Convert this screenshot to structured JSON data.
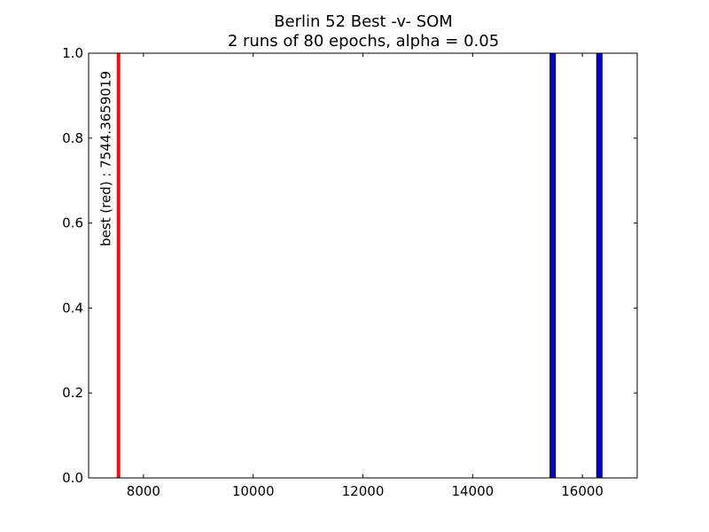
{
  "chart_data": {
    "type": "bar",
    "title": "Berlin 52 Best -v- SOM",
    "subtitle": "2 runs of 80 epochs, alpha = 0.05",
    "xlabel": "",
    "ylabel": "",
    "xlim": [
      7000,
      17000
    ],
    "ylim": [
      0,
      1
    ],
    "x_ticks": [
      8000,
      10000,
      12000,
      14000,
      16000
    ],
    "x_tick_labels": [
      "8000",
      "10000",
      "12000",
      "14000",
      "16000"
    ],
    "y_ticks": [
      0,
      0.2,
      0.4,
      0.6,
      0.8,
      1.0
    ],
    "y_tick_labels": [
      "0.0",
      "0.2",
      "0.4",
      "0.6",
      "0.8",
      "1.0"
    ],
    "grid": false,
    "best": {
      "value": 7544.3659019,
      "height": 1.0,
      "color": "#ee1111",
      "annotation": "best (red) : 7544.3659019"
    },
    "series": [
      {
        "color": "#0000cc",
        "bars": [
          {
            "x": 15460,
            "height": 1.0
          },
          {
            "x": 16310,
            "height": 1.0
          }
        ]
      }
    ]
  }
}
